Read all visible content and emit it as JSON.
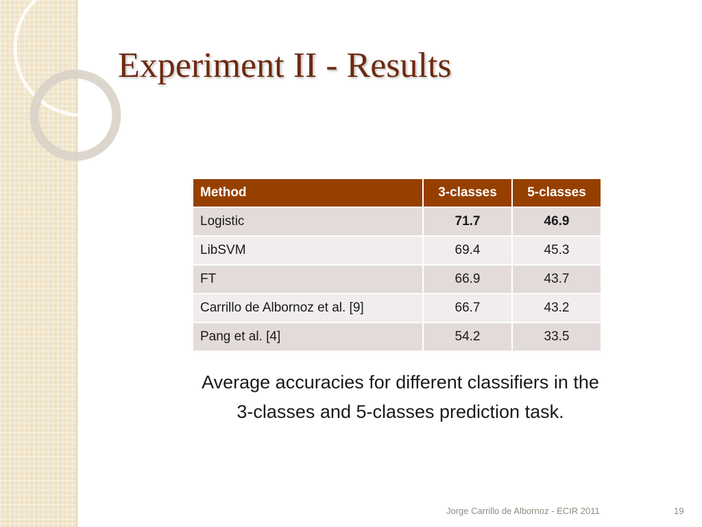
{
  "slide": {
    "title": "Experiment II - Results",
    "caption_line1": "Average accuracies for different classifiers in the",
    "caption_line2": "3-classes and 5-classes prediction task.",
    "footer": "Jorge Carrillo de Albornoz - ECIR 2011",
    "page_number": "19"
  },
  "table": {
    "headers": [
      "Method",
      "3-classes",
      "5-classes"
    ],
    "rows": [
      {
        "method": "Logistic",
        "c3": "71.7",
        "c5": "46.9"
      },
      {
        "method": "LibSVM",
        "c3": "69.4",
        "c5": "45.3"
      },
      {
        "method": "FT",
        "c3": "66.9",
        "c5": "43.7"
      },
      {
        "method": "Carrillo de Albornoz et al. [9]",
        "c3": "66.7",
        "c5": "43.2"
      },
      {
        "method": "Pang et al. [4]",
        "c3": "54.2",
        "c5": "33.5"
      }
    ]
  },
  "colors": {
    "title": "#6e2a10",
    "header_fill": "#964000",
    "row_odd": "#e3dbda",
    "row_even": "#f1edec",
    "side_panel": "#efe3c8"
  }
}
